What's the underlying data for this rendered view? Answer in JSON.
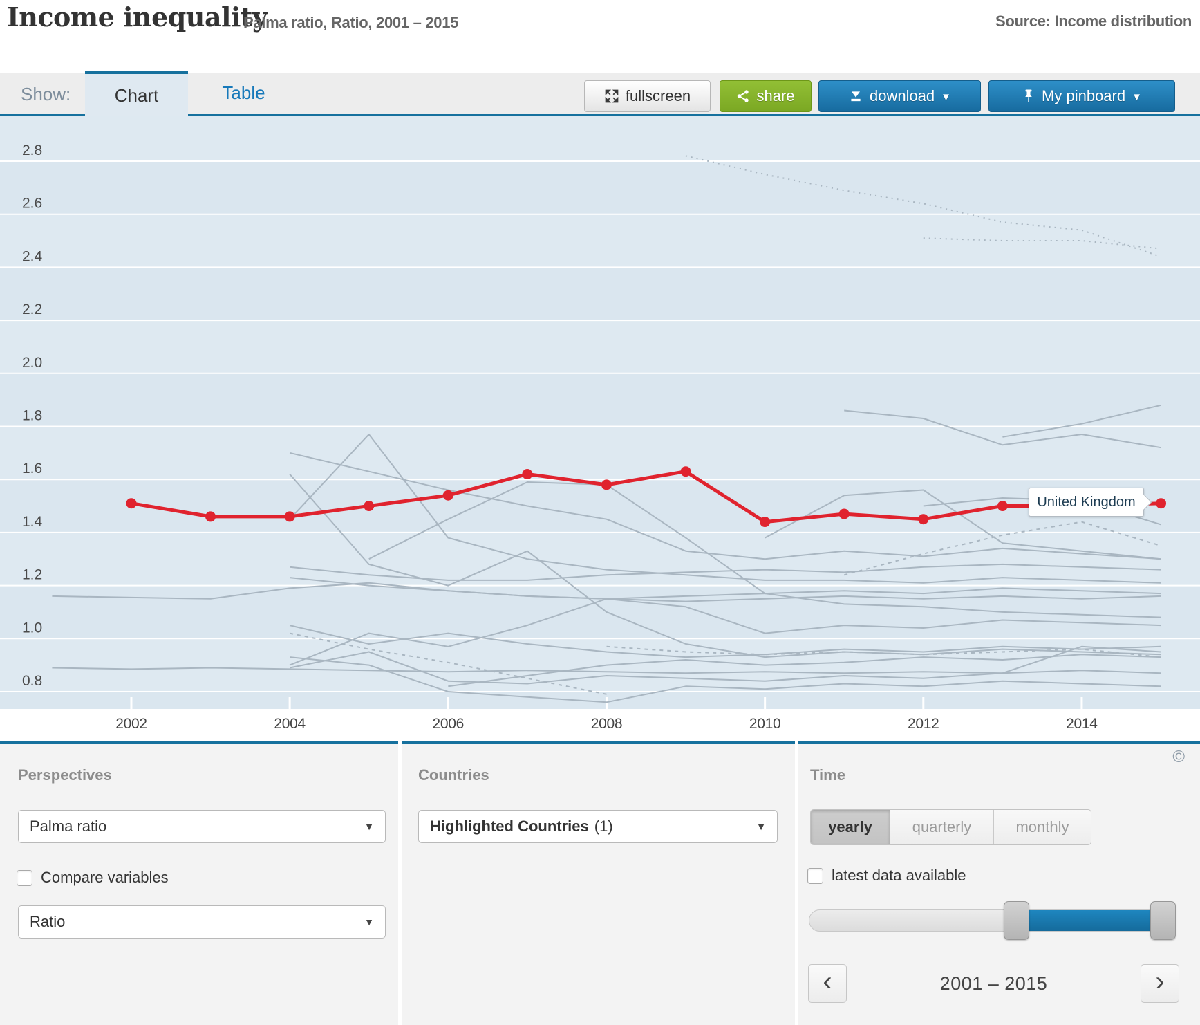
{
  "header": {
    "title": "Income inequality",
    "subtitle": "Palma ratio, Ratio, 2001 – 2015",
    "source": "Source: Income distribution"
  },
  "ui": {
    "caret": "▼"
  },
  "toolbar": {
    "show_label": "Show:",
    "tabs": [
      {
        "label": "Chart",
        "active": true
      },
      {
        "label": "Table",
        "active": false
      }
    ],
    "fullscreen_label": "fullscreen",
    "share_label": "share",
    "download_label": "download",
    "pinboard_label": "My pinboard"
  },
  "chart_data": {
    "type": "line",
    "title": "Income inequality",
    "subtitle": "Palma ratio, Ratio, 2001 – 2015",
    "x": [
      2001,
      2002,
      2003,
      2004,
      2005,
      2006,
      2007,
      2008,
      2009,
      2010,
      2011,
      2012,
      2013,
      2014,
      2015
    ],
    "xticks": [
      2002,
      2004,
      2006,
      2008,
      2010,
      2012,
      2014
    ],
    "yticks": [
      0.8,
      1.0,
      1.2,
      1.4,
      1.6,
      1.8,
      2.0,
      2.2,
      2.4,
      2.6,
      2.8
    ],
    "ylim": [
      0.73,
      2.97
    ],
    "grid": "horizontal-white",
    "colors": {
      "highlight": "#e0232e",
      "series": "#a9b6c1",
      "plot_bg": "#dee9f1",
      "band_alt": "#dae6ef"
    },
    "highlighted": {
      "name": "United Kingdom",
      "color": "#e0232e",
      "values": [
        null,
        1.51,
        1.46,
        1.46,
        1.5,
        1.54,
        1.62,
        1.58,
        1.63,
        1.44,
        1.47,
        1.45,
        1.5,
        1.5,
        1.51
      ]
    },
    "series": [
      {
        "name": "series-01",
        "dash": "dotted",
        "values": [
          null,
          null,
          null,
          null,
          null,
          null,
          null,
          null,
          2.82,
          2.75,
          2.69,
          2.64,
          2.57,
          2.54,
          2.44
        ]
      },
      {
        "name": "series-02",
        "dash": "dotted",
        "values": [
          null,
          null,
          null,
          null,
          null,
          null,
          null,
          null,
          null,
          null,
          null,
          2.51,
          2.5,
          2.5,
          2.47
        ]
      },
      {
        "name": "series-03",
        "dash": "solid",
        "values": [
          null,
          null,
          null,
          null,
          null,
          null,
          null,
          null,
          null,
          null,
          1.86,
          1.83,
          1.73,
          1.77,
          1.72
        ]
      },
      {
        "name": "series-04",
        "dash": "solid",
        "values": [
          null,
          null,
          null,
          null,
          null,
          null,
          null,
          null,
          null,
          null,
          null,
          null,
          1.76,
          1.81,
          1.88
        ]
      },
      {
        "name": "series-05",
        "dash": "solid",
        "values": [
          null,
          null,
          null,
          1.45,
          1.77,
          1.38,
          1.3,
          1.26,
          1.24,
          1.22,
          1.22,
          1.21,
          1.23,
          1.22,
          1.21
        ]
      },
      {
        "name": "series-06",
        "dash": "solid",
        "values": [
          null,
          null,
          null,
          1.7,
          1.63,
          1.56,
          1.5,
          1.45,
          1.33,
          1.3,
          1.33,
          1.31,
          1.34,
          1.32,
          1.3
        ]
      },
      {
        "name": "series-07",
        "dash": "solid",
        "values": [
          null,
          null,
          null,
          null,
          1.3,
          1.45,
          1.59,
          1.58,
          1.38,
          1.17,
          1.13,
          1.12,
          1.1,
          1.09,
          1.08
        ]
      },
      {
        "name": "series-08",
        "dash": "solid",
        "values": [
          null,
          null,
          null,
          null,
          null,
          null,
          null,
          null,
          null,
          null,
          null,
          1.5,
          1.53,
          1.52,
          1.43
        ]
      },
      {
        "name": "series-09",
        "dash": "solid",
        "values": [
          null,
          null,
          null,
          null,
          null,
          null,
          null,
          null,
          null,
          1.38,
          1.54,
          1.56,
          1.36,
          1.33,
          1.3
        ]
      },
      {
        "name": "series-10",
        "dash": "solid",
        "values": [
          1.16,
          1.155,
          1.15,
          1.19,
          1.21,
          1.18,
          1.16,
          1.15,
          1.14,
          1.15,
          1.16,
          1.15,
          1.16,
          1.15,
          1.16
        ]
      },
      {
        "name": "series-11",
        "dash": "solid",
        "values": [
          0.89,
          0.885,
          0.89,
          0.885,
          0.88,
          0.875,
          0.88,
          0.875,
          0.87,
          0.875,
          0.87,
          0.875,
          0.87,
          0.88,
          0.87
        ]
      },
      {
        "name": "series-12",
        "dash": "solid",
        "values": [
          null,
          null,
          null,
          1.27,
          1.24,
          1.22,
          1.22,
          1.24,
          1.25,
          1.26,
          1.25,
          1.27,
          1.28,
          1.27,
          1.26
        ]
      },
      {
        "name": "series-13",
        "dash": "solid",
        "values": [
          null,
          null,
          null,
          1.23,
          1.2,
          1.18,
          1.16,
          1.15,
          1.16,
          1.17,
          1.18,
          1.17,
          1.19,
          1.18,
          1.17
        ]
      },
      {
        "name": "series-14",
        "dash": "solid",
        "values": [
          null,
          null,
          null,
          0.9,
          1.02,
          0.97,
          1.05,
          1.15,
          1.12,
          1.02,
          1.05,
          1.04,
          1.07,
          1.06,
          1.05
        ]
      },
      {
        "name": "series-15",
        "dash": "solid",
        "values": [
          null,
          null,
          null,
          0.89,
          0.95,
          0.84,
          0.83,
          0.86,
          0.85,
          0.84,
          0.86,
          0.85,
          0.87,
          0.97,
          0.95
        ]
      },
      {
        "name": "series-16",
        "dash": "solid",
        "values": [
          null,
          null,
          null,
          0.93,
          0.9,
          0.8,
          0.78,
          0.76,
          0.82,
          0.81,
          0.83,
          0.82,
          0.84,
          0.83,
          0.82
        ]
      },
      {
        "name": "series-17",
        "dash": "solid",
        "values": [
          null,
          null,
          null,
          1.05,
          0.98,
          1.02,
          0.98,
          0.95,
          0.93,
          0.94,
          0.96,
          0.95,
          0.97,
          0.96,
          0.97
        ]
      },
      {
        "name": "series-18",
        "dash": "solid",
        "values": [
          null,
          null,
          null,
          null,
          null,
          0.82,
          0.86,
          0.9,
          0.92,
          0.9,
          0.91,
          0.93,
          0.92,
          0.94,
          0.93
        ]
      },
      {
        "name": "series-19",
        "dash": "solid",
        "values": [
          null,
          null,
          null,
          1.62,
          1.28,
          1.2,
          1.33,
          1.1,
          0.98,
          0.93,
          0.95,
          0.94,
          0.96,
          0.95,
          0.94
        ]
      },
      {
        "name": "series-20",
        "dash": "dashed",
        "values": [
          null,
          null,
          null,
          1.02,
          0.96,
          0.91,
          0.85,
          0.79,
          null,
          null,
          null,
          null,
          null,
          null,
          null
        ]
      },
      {
        "name": "series-21",
        "dash": "dashed",
        "values": [
          null,
          null,
          null,
          null,
          null,
          null,
          null,
          0.97,
          0.95,
          0.94,
          0.95,
          0.94,
          0.95,
          0.96,
          0.93
        ]
      },
      {
        "name": "series-22",
        "dash": "dashed",
        "values": [
          null,
          null,
          null,
          null,
          null,
          null,
          null,
          null,
          null,
          null,
          1.24,
          1.32,
          1.39,
          1.44,
          1.35
        ]
      }
    ]
  },
  "panels": {
    "copyright": "©",
    "perspectives": {
      "heading": "Perspectives",
      "primary_select": "Palma ratio",
      "compare_label": "Compare variables",
      "compare_checked": false,
      "unit_select": "Ratio"
    },
    "countries": {
      "heading": "Countries",
      "select_bold": "Highlighted Countries",
      "select_count": "(1)"
    },
    "time": {
      "heading": "Time",
      "frequency_options": [
        {
          "label": "yearly",
          "active": true
        },
        {
          "label": "quarterly",
          "active": false
        },
        {
          "label": "monthly",
          "active": false
        }
      ],
      "latest_label": "latest data available",
      "latest_checked": false,
      "range_label": "2001 – 2015",
      "prev": "‹",
      "next": "›"
    }
  }
}
